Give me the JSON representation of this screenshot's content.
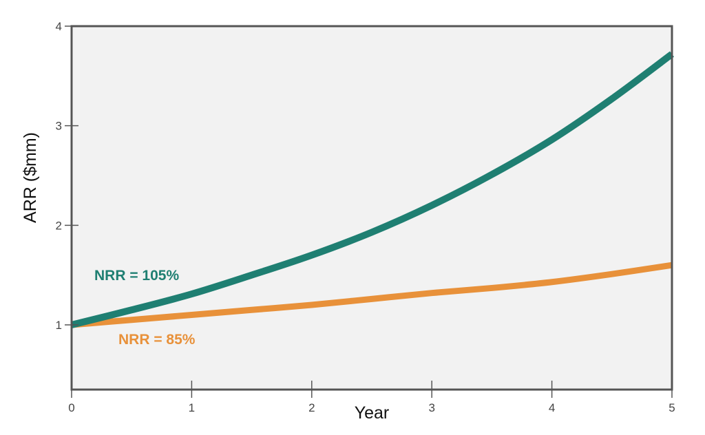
{
  "chart_data": {
    "type": "line",
    "xlabel": "Year",
    "ylabel": "ARR ($mm)",
    "xlim": [
      0,
      5
    ],
    "ylim": [
      0.35,
      4
    ],
    "xticks": [
      "0",
      "1",
      "2",
      "3",
      "4",
      "5"
    ],
    "yticks": [
      "1",
      "2",
      "3",
      "4"
    ],
    "grid": false,
    "background_color": "#f2f2f2",
    "series": [
      {
        "name": "NRR = 105%",
        "color": "#1f7f72",
        "x": [
          0,
          0.5,
          1,
          1.5,
          2,
          2.5,
          3,
          3.5,
          4,
          4.5,
          5
        ],
        "y": [
          1.0,
          1.15,
          1.31,
          1.5,
          1.7,
          1.93,
          2.2,
          2.51,
          2.86,
          3.27,
          3.72
        ]
      },
      {
        "name": "NRR = 85%",
        "color": "#e8913a",
        "x": [
          0,
          0.5,
          1,
          1.5,
          2,
          2.5,
          3,
          3.5,
          4,
          4.5,
          5
        ],
        "y": [
          1.0,
          1.05,
          1.1,
          1.15,
          1.2,
          1.26,
          1.32,
          1.37,
          1.43,
          1.51,
          1.6
        ]
      }
    ]
  }
}
